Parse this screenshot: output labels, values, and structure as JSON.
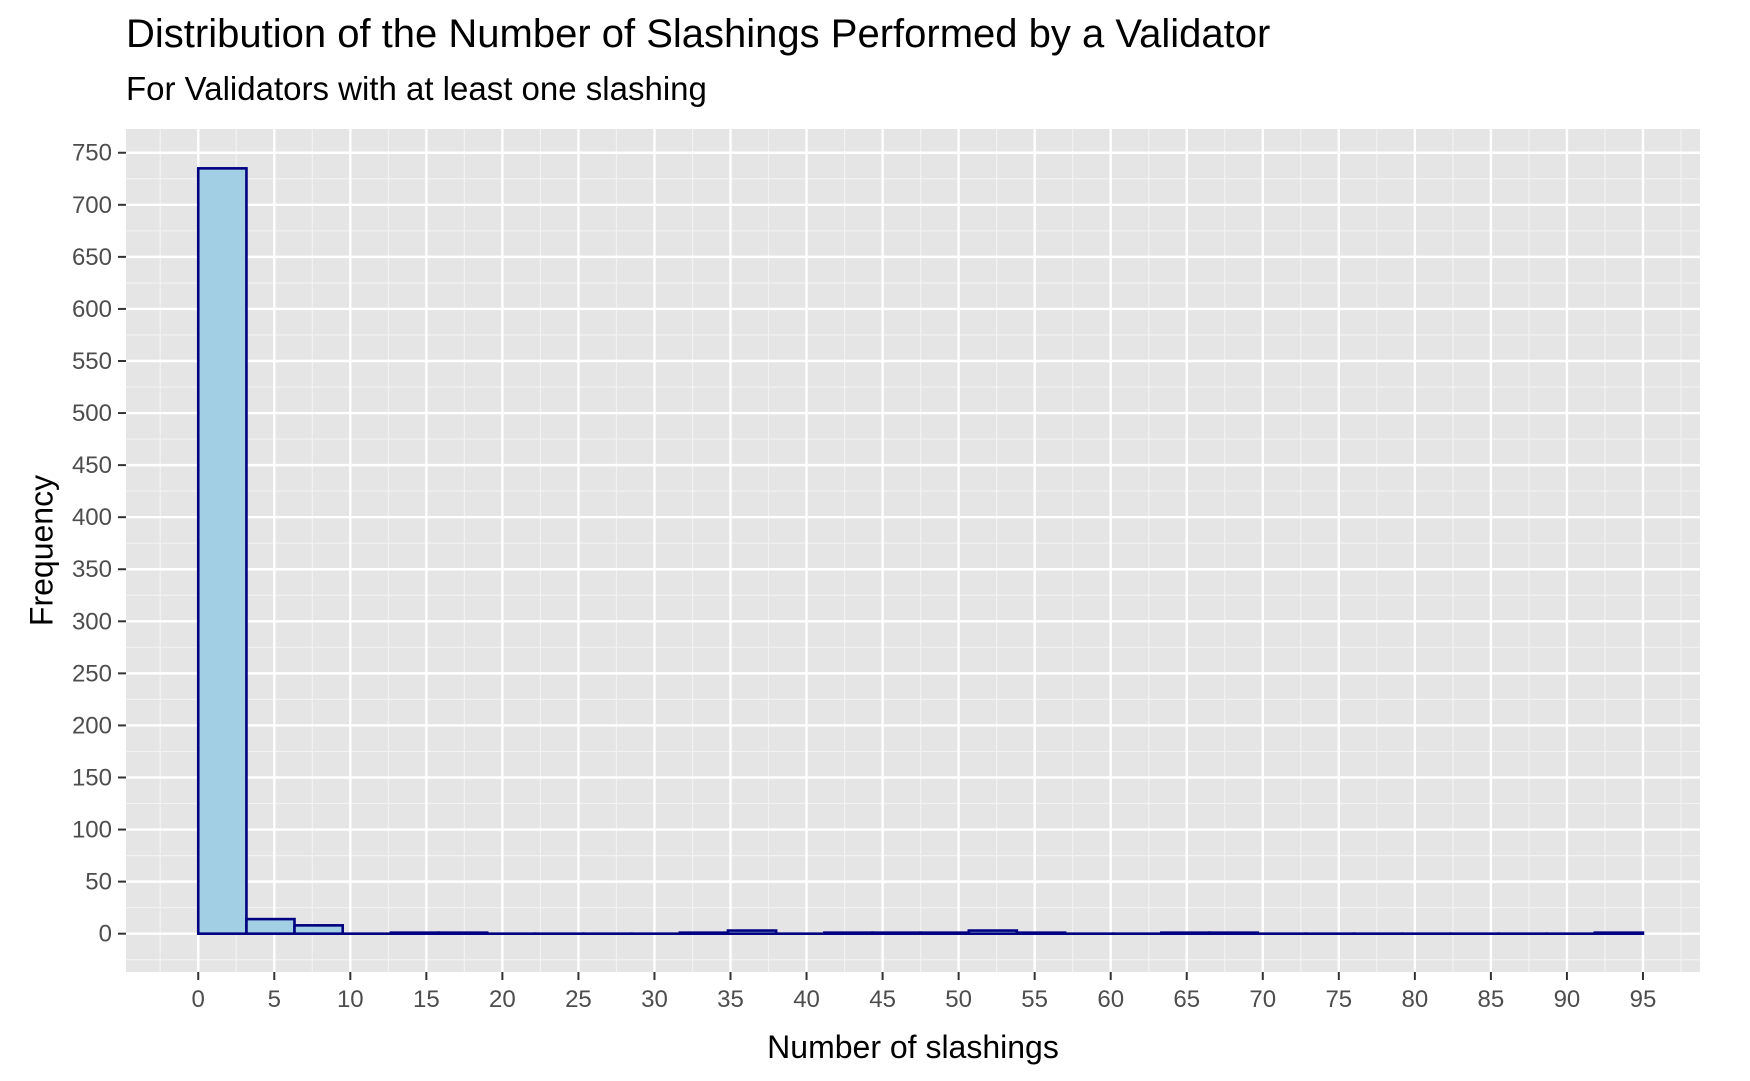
{
  "chart_data": {
    "type": "bar",
    "title": "Distribution of the Number of Slashings Performed by a Validator",
    "subtitle": "For Validators with at least one slashing",
    "xlabel": "Number of slashings",
    "ylabel": "Frequency",
    "xlim": [
      -4.75,
      98.75
    ],
    "ylim": [
      -36.8,
      772.8
    ],
    "x_ticks": [
      0,
      5,
      10,
      15,
      20,
      25,
      30,
      35,
      40,
      45,
      50,
      55,
      60,
      65,
      70,
      75,
      80,
      85,
      90,
      95
    ],
    "y_ticks": [
      0,
      50,
      100,
      150,
      200,
      250,
      300,
      350,
      400,
      450,
      500,
      550,
      600,
      650,
      700,
      750
    ],
    "grid": true,
    "bin_width": 3.17,
    "bins": [
      {
        "x_start": 0.0,
        "x_end": 3.17,
        "count": 735
      },
      {
        "x_start": 3.17,
        "x_end": 6.33,
        "count": 14
      },
      {
        "x_start": 6.33,
        "x_end": 9.5,
        "count": 8
      },
      {
        "x_start": 9.5,
        "x_end": 12.67,
        "count": 0
      },
      {
        "x_start": 12.67,
        "x_end": 15.83,
        "count": 1
      },
      {
        "x_start": 15.83,
        "x_end": 19.0,
        "count": 1
      },
      {
        "x_start": 19.0,
        "x_end": 22.17,
        "count": 0
      },
      {
        "x_start": 22.17,
        "x_end": 25.33,
        "count": 0
      },
      {
        "x_start": 25.33,
        "x_end": 28.5,
        "count": 0
      },
      {
        "x_start": 28.5,
        "x_end": 31.67,
        "count": 0
      },
      {
        "x_start": 31.67,
        "x_end": 34.83,
        "count": 1
      },
      {
        "x_start": 34.83,
        "x_end": 38.0,
        "count": 3
      },
      {
        "x_start": 38.0,
        "x_end": 41.17,
        "count": 0
      },
      {
        "x_start": 41.17,
        "x_end": 44.33,
        "count": 1
      },
      {
        "x_start": 44.33,
        "x_end": 47.5,
        "count": 1
      },
      {
        "x_start": 47.5,
        "x_end": 50.67,
        "count": 1
      },
      {
        "x_start": 50.67,
        "x_end": 53.83,
        "count": 3
      },
      {
        "x_start": 53.83,
        "x_end": 57.0,
        "count": 1
      },
      {
        "x_start": 57.0,
        "x_end": 60.17,
        "count": 0
      },
      {
        "x_start": 60.17,
        "x_end": 63.33,
        "count": 0
      },
      {
        "x_start": 63.33,
        "x_end": 66.5,
        "count": 1
      },
      {
        "x_start": 66.5,
        "x_end": 69.67,
        "count": 1
      },
      {
        "x_start": 69.67,
        "x_end": 72.83,
        "count": 0
      },
      {
        "x_start": 72.83,
        "x_end": 76.0,
        "count": 0
      },
      {
        "x_start": 76.0,
        "x_end": 79.17,
        "count": 0
      },
      {
        "x_start": 79.17,
        "x_end": 82.33,
        "count": 0
      },
      {
        "x_start": 82.33,
        "x_end": 85.5,
        "count": 0
      },
      {
        "x_start": 85.5,
        "x_end": 88.67,
        "count": 0
      },
      {
        "x_start": 88.67,
        "x_end": 91.83,
        "count": 0
      },
      {
        "x_start": 91.83,
        "x_end": 95.0,
        "count": 1
      }
    ],
    "colors": {
      "bar_fill": "#a2cfe3",
      "bar_outline": "#000080",
      "panel_background": "#e5e5e5",
      "grid_major": "#ffffff",
      "grid_minor": "#f2f2f2"
    }
  }
}
